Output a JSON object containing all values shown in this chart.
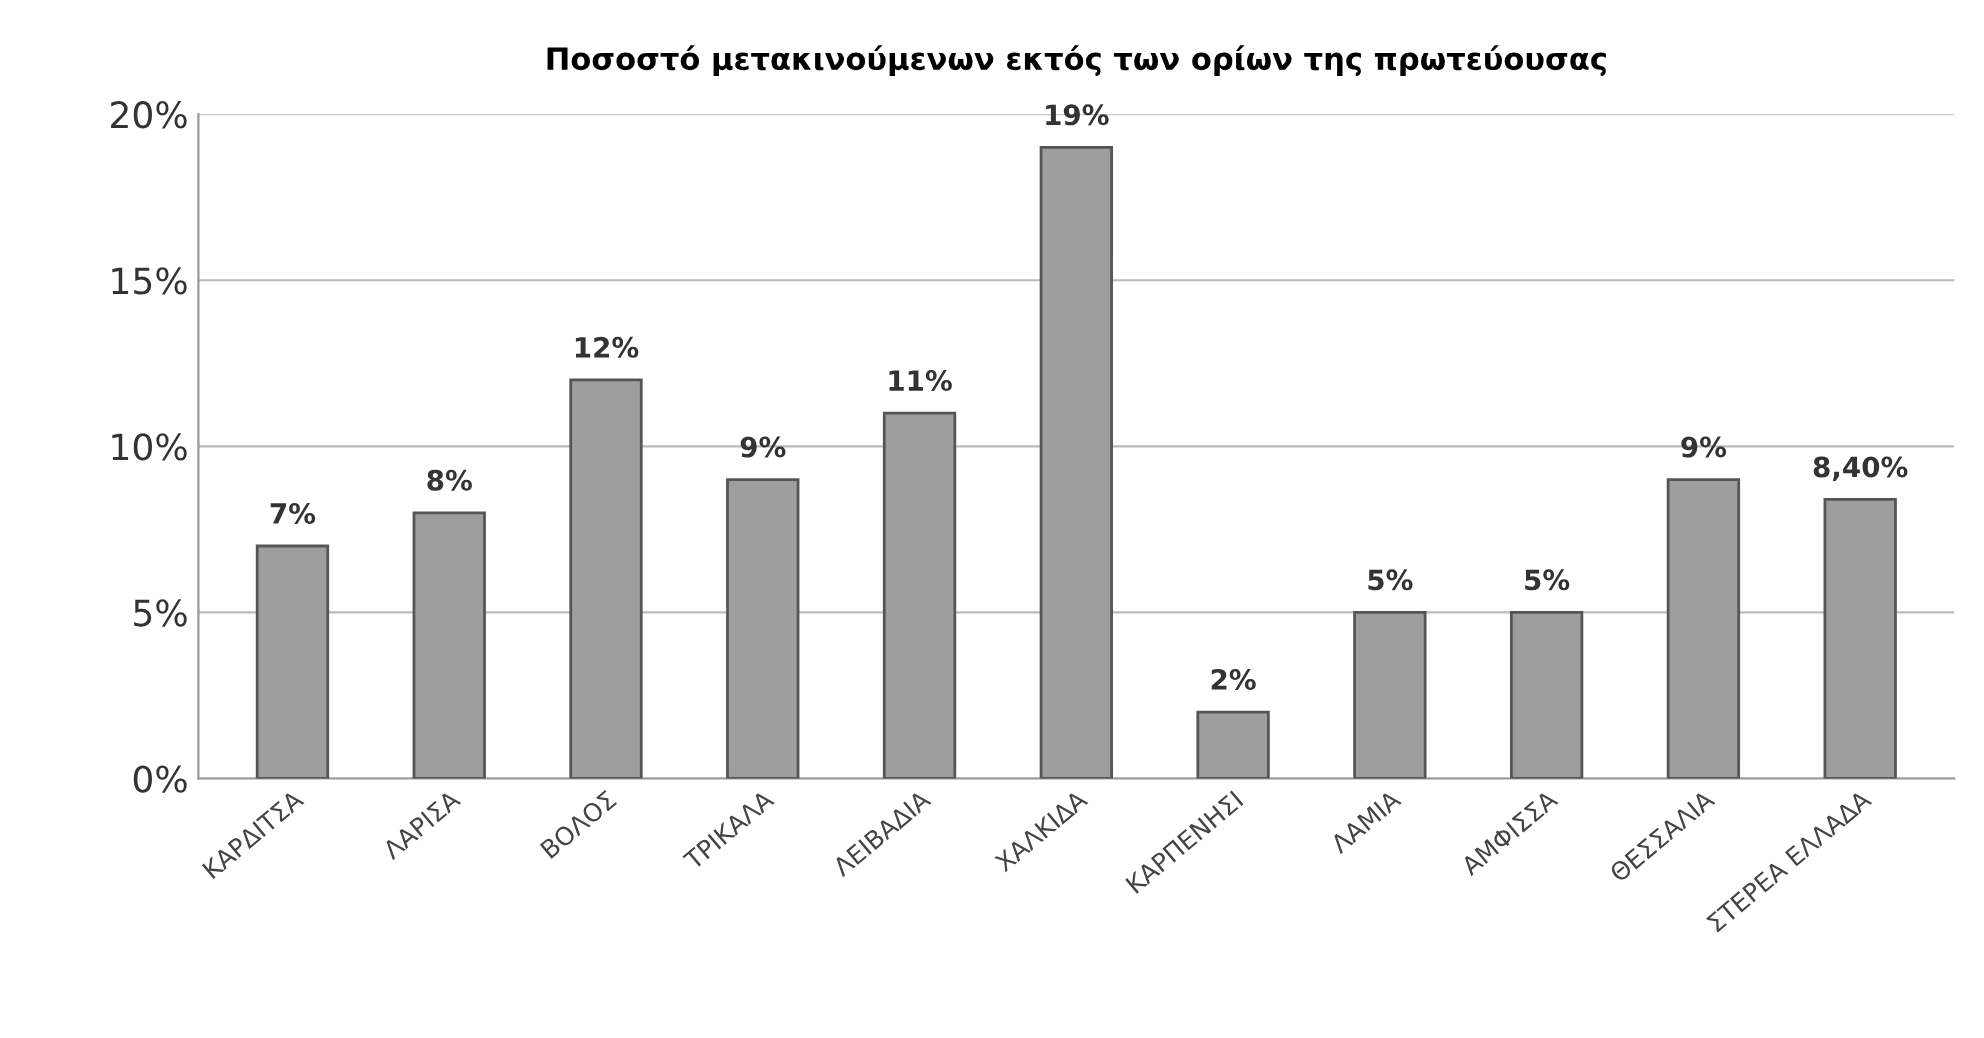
{
  "chart_data": {
    "type": "bar",
    "title": "Ποσοστό μετακινούμενων εκτός των ορίων της πρωτεύουσας",
    "categories": [
      "ΚΑΡΔΙΤΣΑ",
      "ΛΑΡΙΣΑ",
      "ΒΟΛΟΣ",
      "ΤΡΙΚΑΛΑ",
      "ΛΕΙΒΑΔΙΑ",
      "ΧΑΛΚΙΔΑ",
      "ΚΑΡΠΕΝΗΣΙ",
      "ΛΑΜΙΑ",
      "ΑΜΦΙΣΣΑ",
      "ΘΕΣΣΑΛΙΑ",
      "ΣΤΕΡΕΑ ΕΛΛΑΔΑ"
    ],
    "values": [
      7,
      8,
      12,
      9,
      11,
      19,
      2,
      5,
      5,
      9,
      8.4
    ],
    "value_labels": [
      "7%",
      "8%",
      "12%",
      "9%",
      "11%",
      "19%",
      "2%",
      "5%",
      "5%",
      "9%",
      "8,40%"
    ],
    "color": "#9e9e9e",
    "ylim": [
      0,
      20
    ],
    "yticks": [
      {
        "value": 0,
        "label": "0%"
      },
      {
        "value": 5,
        "label": "5%"
      },
      {
        "value": 10,
        "label": "10%"
      },
      {
        "value": 15,
        "label": "15%"
      },
      {
        "value": 20,
        "label": "20%"
      }
    ],
    "grid": "y"
  }
}
